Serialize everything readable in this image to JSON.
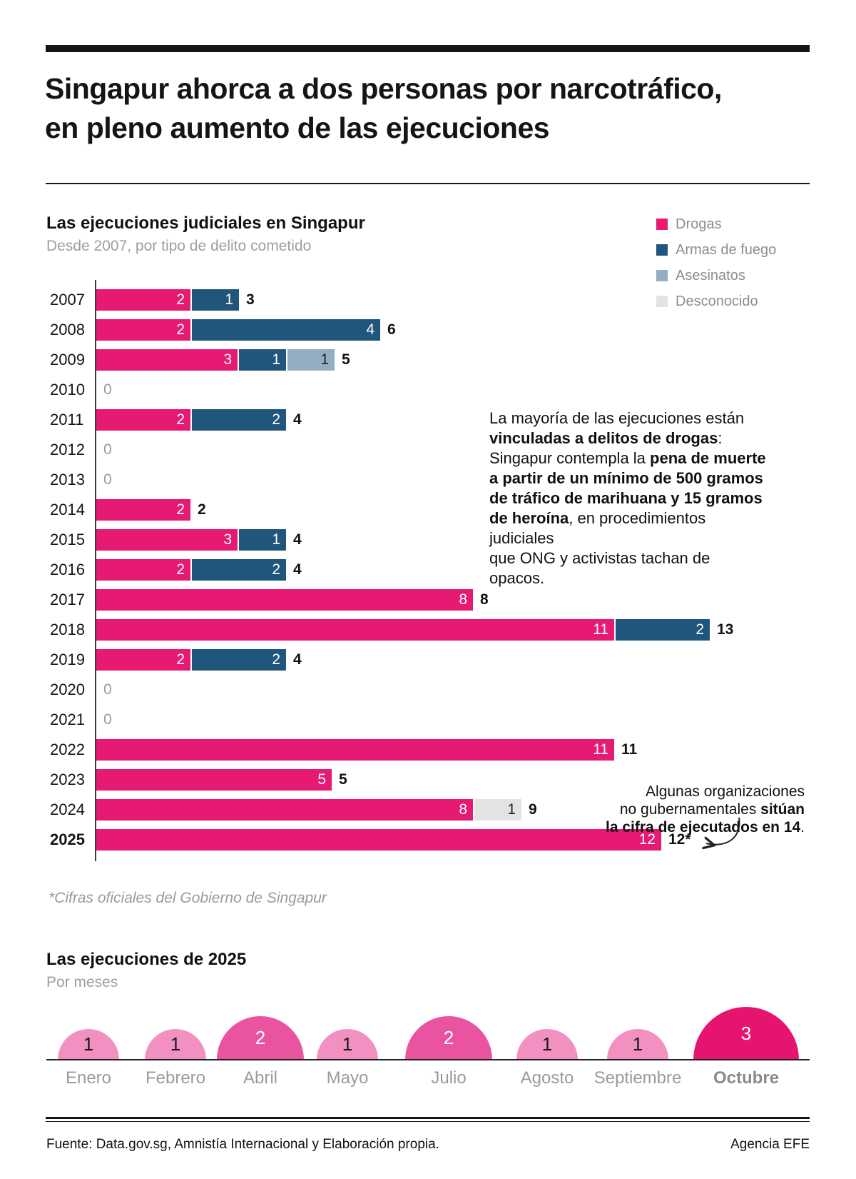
{
  "page": {
    "title_line1": "Singapur ahorca a dos personas por narcotráfico,",
    "title_line2": "en pleno aumento de las ejecuciones",
    "source": "Fuente:  Data.gov.sg, Amnistía Internacional y Elaboración propia.",
    "credit": "Agencia EFE"
  },
  "executions_chart": {
    "title": "Las ejecuciones judiciales en Singapur",
    "subtitle": "Desde 2007, por tipo de delito cometido",
    "footnote": "*Cifras oficiales del Gobierno de Singapur",
    "annotation_drugs_lines": [
      [
        {
          "t": "La mayoría de las ejecuciones están",
          "b": false
        }
      ],
      [
        {
          "t": "vinculadas a delitos de drogas",
          "b": true
        },
        {
          "t": ":",
          "b": false
        }
      ],
      [
        {
          "t": "Singapur contempla la ",
          "b": false
        },
        {
          "t": "pena de muerte",
          "b": true
        }
      ],
      [
        {
          "t": "a partir de un mínimo de 500 gramos",
          "b": true
        }
      ],
      [
        {
          "t": "de tráfico de marihuana y 15 gramos",
          "b": true
        }
      ],
      [
        {
          "t": "de heroína",
          "b": true
        },
        {
          "t": ", en procedimientos judiciales",
          "b": false
        }
      ],
      [
        {
          "t": "que ONG y activistas tachan de opacos.",
          "b": false
        }
      ]
    ],
    "annotation_ngo_lines": [
      [
        {
          "t": "Algunas organizaciones",
          "b": false
        }
      ],
      [
        {
          "t": "no gubernamentales ",
          "b": false
        },
        {
          "t": "sitúan",
          "b": true
        }
      ],
      [
        {
          "t": "la cifra de ejecutados en 14",
          "b": true
        },
        {
          "t": ".",
          "b": false
        }
      ]
    ]
  },
  "months_chart": {
    "title": "Las ejecuciones de 2025",
    "subtitle": "Por meses"
  },
  "chart_data": [
    {
      "type": "bar",
      "orientation": "horizontal",
      "stacked": true,
      "title": "Las ejecuciones judiciales en Singapur",
      "subtitle": "Desde 2007, por tipo de delito cometido",
      "categories": [
        "2007",
        "2008",
        "2009",
        "2010",
        "2011",
        "2012",
        "2013",
        "2014",
        "2015",
        "2016",
        "2017",
        "2018",
        "2019",
        "2020",
        "2021",
        "2022",
        "2023",
        "2024",
        "2025"
      ],
      "highlight_category": "2025",
      "series": [
        {
          "name": "Drogas",
          "color": "#e61a72",
          "label_color": "#ffffff",
          "values": [
            2,
            2,
            3,
            0,
            2,
            0,
            0,
            2,
            3,
            2,
            8,
            11,
            2,
            0,
            0,
            11,
            5,
            8,
            12
          ]
        },
        {
          "name": "Armas de fuego",
          "color": "#21567c",
          "label_color": "#ffffff",
          "values": [
            1,
            4,
            1,
            0,
            2,
            0,
            0,
            0,
            1,
            2,
            0,
            2,
            2,
            0,
            0,
            0,
            0,
            0,
            0
          ]
        },
        {
          "name": "Asesinatos",
          "color": "#93adc2",
          "label_color": "#222222",
          "values": [
            0,
            0,
            1,
            0,
            0,
            0,
            0,
            0,
            0,
            0,
            0,
            0,
            0,
            0,
            0,
            0,
            0,
            0,
            0
          ]
        },
        {
          "name": "Desconocido",
          "color": "#e3e3e3",
          "label_color": "#222222",
          "values": [
            0,
            0,
            0,
            0,
            0,
            0,
            0,
            0,
            0,
            0,
            0,
            0,
            0,
            0,
            0,
            0,
            0,
            1,
            0
          ]
        }
      ],
      "totals": [
        "3",
        "6",
        "5",
        "0",
        "4",
        "0",
        "0",
        "2",
        "4",
        "4",
        "8",
        "13",
        "4",
        "0",
        "0",
        "11",
        "5",
        "9",
        "12*"
      ],
      "xmax": 13,
      "legend_position": "top-right",
      "grid": false
    },
    {
      "type": "bar",
      "variant": "semicircle-bubbles",
      "title": "Las ejecuciones de 2025",
      "subtitle": "Por meses",
      "categories": [
        "Enero",
        "Febrero",
        "Abril",
        "Mayo",
        "Julio",
        "Agosto",
        "Septiembre",
        "Octubre"
      ],
      "values": [
        1,
        1,
        2,
        1,
        2,
        1,
        1,
        3
      ],
      "highlight_category": "Octubre",
      "fill_by_value": {
        "1": "#f190c1",
        "2": "#e9539f",
        "3": "#e5156f"
      },
      "text_by_value": {
        "1": "#1a1a1a",
        "2": "#ffffff",
        "3": "#ffffff"
      }
    }
  ]
}
